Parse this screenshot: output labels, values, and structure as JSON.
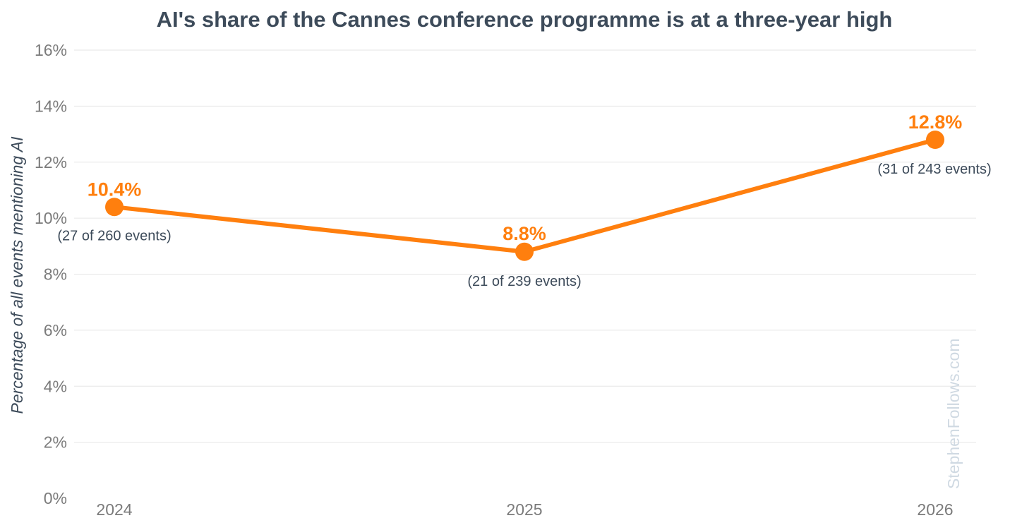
{
  "chart_data": {
    "type": "line",
    "title": "AI's share of the Cannes conference programme is at a three-year high",
    "xlabel": "",
    "ylabel": "Percentage of all events mentioning AI",
    "categories": [
      "2024",
      "2025",
      "2026"
    ],
    "series": [
      {
        "name": "AI share",
        "values": [
          10.4,
          8.8,
          12.8
        ],
        "value_labels": [
          "10.4%",
          "8.8%",
          "12.8%"
        ],
        "notes": [
          "(27 of 260 events)",
          "(21 of 239 events)",
          "(31 of 243 events)"
        ]
      }
    ],
    "ylim": [
      0,
      16
    ],
    "yticks": [
      0,
      2,
      4,
      6,
      8,
      10,
      12,
      14,
      16
    ],
    "ytick_labels": [
      "0%",
      "2%",
      "4%",
      "6%",
      "8%",
      "10%",
      "12%",
      "14%",
      "16%"
    ],
    "grid": true,
    "color": "#ff7f0e",
    "watermark": "StephenFollows.com"
  }
}
